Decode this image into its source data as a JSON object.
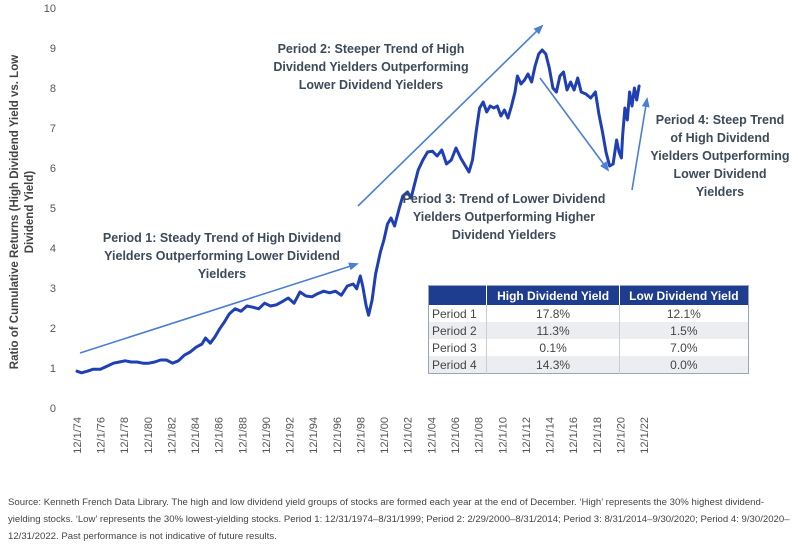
{
  "chart_data": {
    "type": "line",
    "ylabel": "Ratio of Cumulative Returns (High Dividend Yield vs. Low Dividend Yield)",
    "ylabel_lines": [
      "Ratio of Cumulative Returns (High Dividend Yield vs. Low",
      "Dividend Yield)"
    ],
    "ylim": [
      0,
      10
    ],
    "yticks": [
      0,
      1,
      2,
      3,
      4,
      5,
      6,
      7,
      8,
      9,
      10
    ],
    "xlim": [
      1974.92,
      2023.0
    ],
    "xticks": [
      "12/1/74",
      "12/1/76",
      "12/1/78",
      "12/1/80",
      "12/1/82",
      "12/1/84",
      "12/1/86",
      "12/1/88",
      "12/1/90",
      "12/1/92",
      "12/1/94",
      "12/1/96",
      "12/1/98",
      "12/1/00",
      "12/1/02",
      "12/1/04",
      "12/1/06",
      "12/1/08",
      "12/1/10",
      "12/1/12",
      "12/1/14",
      "12/1/16",
      "12/1/18",
      "12/1/20",
      "12/1/22"
    ],
    "line_color": "#1f3fb5",
    "series": [
      {
        "values_xy": [
          [
            1974.92,
            0.92
          ],
          [
            1975.3,
            0.88
          ],
          [
            1975.8,
            0.92
          ],
          [
            1976.3,
            0.97
          ],
          [
            1976.9,
            0.97
          ],
          [
            1977.5,
            1.05
          ],
          [
            1978.0,
            1.12
          ],
          [
            1978.5,
            1.15
          ],
          [
            1979.0,
            1.18
          ],
          [
            1979.5,
            1.15
          ],
          [
            1980.0,
            1.15
          ],
          [
            1980.5,
            1.12
          ],
          [
            1981.0,
            1.12
          ],
          [
            1981.5,
            1.15
          ],
          [
            1982.0,
            1.2
          ],
          [
            1982.5,
            1.2
          ],
          [
            1983.0,
            1.12
          ],
          [
            1983.5,
            1.18
          ],
          [
            1984.0,
            1.32
          ],
          [
            1984.5,
            1.4
          ],
          [
            1985.0,
            1.52
          ],
          [
            1985.5,
            1.6
          ],
          [
            1985.8,
            1.75
          ],
          [
            1986.2,
            1.62
          ],
          [
            1986.6,
            1.78
          ],
          [
            1987.0,
            1.98
          ],
          [
            1987.4,
            2.15
          ],
          [
            1987.8,
            2.35
          ],
          [
            1988.3,
            2.48
          ],
          [
            1988.8,
            2.42
          ],
          [
            1989.3,
            2.55
          ],
          [
            1989.8,
            2.52
          ],
          [
            1990.3,
            2.48
          ],
          [
            1990.8,
            2.62
          ],
          [
            1991.3,
            2.55
          ],
          [
            1991.8,
            2.58
          ],
          [
            1992.3,
            2.66
          ],
          [
            1992.8,
            2.75
          ],
          [
            1993.3,
            2.62
          ],
          [
            1993.8,
            2.9
          ],
          [
            1994.3,
            2.8
          ],
          [
            1994.8,
            2.78
          ],
          [
            1995.3,
            2.86
          ],
          [
            1995.8,
            2.92
          ],
          [
            1996.3,
            2.88
          ],
          [
            1996.8,
            2.92
          ],
          [
            1997.3,
            2.82
          ],
          [
            1997.8,
            3.05
          ],
          [
            1998.3,
            3.1
          ],
          [
            1998.6,
            2.98
          ],
          [
            1998.9,
            3.3
          ],
          [
            1999.1,
            3.05
          ],
          [
            1999.4,
            2.55
          ],
          [
            1999.6,
            2.32
          ],
          [
            1999.9,
            2.7
          ],
          [
            2000.2,
            3.35
          ],
          [
            2000.6,
            3.9
          ],
          [
            2000.9,
            4.2
          ],
          [
            2001.2,
            4.6
          ],
          [
            2001.5,
            4.75
          ],
          [
            2001.8,
            4.55
          ],
          [
            2002.2,
            5.0
          ],
          [
            2002.5,
            5.3
          ],
          [
            2002.9,
            5.4
          ],
          [
            2003.2,
            5.25
          ],
          [
            2003.5,
            5.6
          ],
          [
            2003.8,
            5.95
          ],
          [
            2004.2,
            6.2
          ],
          [
            2004.6,
            6.4
          ],
          [
            2005.0,
            6.42
          ],
          [
            2005.4,
            6.3
          ],
          [
            2005.8,
            6.45
          ],
          [
            2006.2,
            6.1
          ],
          [
            2006.6,
            6.2
          ],
          [
            2007.0,
            6.5
          ],
          [
            2007.4,
            6.25
          ],
          [
            2007.8,
            6.05
          ],
          [
            2008.1,
            5.9
          ],
          [
            2008.4,
            6.2
          ],
          [
            2008.7,
            6.9
          ],
          [
            2009.0,
            7.5
          ],
          [
            2009.3,
            7.65
          ],
          [
            2009.6,
            7.4
          ],
          [
            2009.9,
            7.55
          ],
          [
            2010.2,
            7.5
          ],
          [
            2010.5,
            7.55
          ],
          [
            2010.8,
            7.3
          ],
          [
            2011.1,
            7.45
          ],
          [
            2011.4,
            7.25
          ],
          [
            2011.7,
            7.55
          ],
          [
            2012.0,
            7.9
          ],
          [
            2012.2,
            8.3
          ],
          [
            2012.5,
            8.1
          ],
          [
            2012.8,
            8.2
          ],
          [
            2013.1,
            8.35
          ],
          [
            2013.4,
            8.15
          ],
          [
            2013.7,
            8.55
          ],
          [
            2014.0,
            8.85
          ],
          [
            2014.3,
            8.95
          ],
          [
            2014.6,
            8.85
          ],
          [
            2014.9,
            8.5
          ],
          [
            2015.2,
            8.0
          ],
          [
            2015.5,
            7.9
          ],
          [
            2015.8,
            8.3
          ],
          [
            2016.1,
            8.4
          ],
          [
            2016.4,
            7.95
          ],
          [
            2016.7,
            8.15
          ],
          [
            2017.0,
            7.95
          ],
          [
            2017.3,
            8.25
          ],
          [
            2017.6,
            7.9
          ],
          [
            2018.0,
            7.85
          ],
          [
            2018.4,
            7.75
          ],
          [
            2018.8,
            7.9
          ],
          [
            2019.1,
            7.35
          ],
          [
            2019.4,
            6.9
          ],
          [
            2019.7,
            6.4
          ],
          [
            2020.0,
            6.05
          ],
          [
            2020.3,
            6.1
          ],
          [
            2020.6,
            6.7
          ],
          [
            2020.8,
            6.4
          ],
          [
            2021.0,
            6.25
          ],
          [
            2021.1,
            6.8
          ],
          [
            2021.3,
            7.5
          ],
          [
            2021.5,
            7.2
          ],
          [
            2021.7,
            7.9
          ],
          [
            2021.9,
            7.55
          ],
          [
            2022.1,
            8.0
          ],
          [
            2022.3,
            7.7
          ],
          [
            2022.5,
            8.05
          ]
        ]
      }
    ],
    "annotations": [
      {
        "id": "p1",
        "lines": [
          "Period 1: Steady Trend of High Dividend",
          "Yielders Outperforming Lower Dividend",
          "Yielders"
        ]
      },
      {
        "id": "p2",
        "lines": [
          "Period 2: Steeper Trend of High",
          "Dividend Yielders Outperforming",
          "Lower Dividend Yielders"
        ]
      },
      {
        "id": "p3",
        "lines": [
          "Period 3: Trend of Lower Dividend",
          "Yielders Outperforming Higher",
          "Dividend Yielders"
        ]
      },
      {
        "id": "p4",
        "lines": [
          "Period 4: Steep Trend",
          "of High Dividend",
          "Yielders Outperforming",
          "Lower Dividend",
          "Yielders"
        ]
      }
    ],
    "arrow_color": "#4a7fd4"
  },
  "table": {
    "headers": [
      "",
      "High Dividend Yield",
      "Low Dividend Yield"
    ],
    "header_bg": "#1f3d8f",
    "rows": [
      {
        "period": "Period 1",
        "high": "17.8%",
        "low": "12.1%"
      },
      {
        "period": "Period 2",
        "high": "11.3%",
        "low": "1.5%"
      },
      {
        "period": "Period 3",
        "high": "0.1%",
        "low": "7.0%"
      },
      {
        "period": "Period 4",
        "high": "14.3%",
        "low": "0.0%"
      }
    ]
  },
  "source": "Source: Kenneth French Data Library. The high and low dividend yield groups of stocks are formed each year at the end of December. ‘High’ represents the 30% highest dividend-yielding stocks. ‘Low’ represents the 30% lowest-yielding stocks. Period 1: 12/31/1974–8/31/1999; Period 2: 2/29/2000–8/31/2014; Period 3: 8/31/2014–9/30/2020; Period 4: 9/30/2020–12/31/2022. Past performance is not indicative of future results."
}
